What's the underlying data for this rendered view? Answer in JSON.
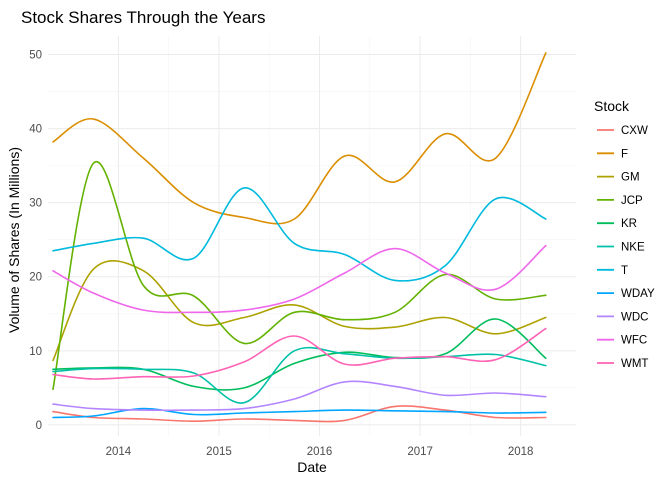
{
  "chart_data": {
    "type": "line",
    "title": "Stock Shares Through the Years",
    "xlabel": "Date",
    "ylabel": "Volume of Shares (In Millions)",
    "xlim": [
      2013.3,
      2018.55
    ],
    "ylim": [
      -1.5,
      52.5
    ],
    "x_ticks": [
      2014,
      2015,
      2016,
      2017,
      2018
    ],
    "x_tick_labels": [
      "2014",
      "2015",
      "2016",
      "2017",
      "2018"
    ],
    "y_ticks": [
      0,
      10,
      20,
      30,
      40,
      50
    ],
    "y_tick_labels": [
      "0",
      "10",
      "20",
      "30",
      "40",
      "50"
    ],
    "grid": true,
    "legend": {
      "title": "Stock",
      "position": "right"
    },
    "series": [
      {
        "name": "CXW",
        "color": "#F8766D",
        "points": [
          [
            2013.35,
            1.8
          ],
          [
            2013.75,
            1.0
          ],
          [
            2014.25,
            0.8
          ],
          [
            2014.75,
            0.5
          ],
          [
            2015.25,
            0.8
          ],
          [
            2015.75,
            0.6
          ],
          [
            2016.25,
            0.6
          ],
          [
            2016.75,
            2.5
          ],
          [
            2017.25,
            2.0
          ],
          [
            2017.75,
            1.0
          ],
          [
            2018.25,
            1.0
          ]
        ]
      },
      {
        "name": "F",
        "color": "#DB8E00",
        "points": [
          [
            2013.35,
            38.2
          ],
          [
            2013.75,
            41.3
          ],
          [
            2014.25,
            36.0
          ],
          [
            2014.75,
            30.0
          ],
          [
            2015.25,
            28.0
          ],
          [
            2015.75,
            27.8
          ],
          [
            2016.25,
            36.3
          ],
          [
            2016.75,
            32.8
          ],
          [
            2017.25,
            39.3
          ],
          [
            2017.75,
            36.0
          ],
          [
            2018.25,
            50.2
          ]
        ]
      },
      {
        "name": "GM",
        "color": "#AEA200",
        "points": [
          [
            2013.35,
            8.7
          ],
          [
            2013.75,
            21.0
          ],
          [
            2014.25,
            20.8
          ],
          [
            2014.75,
            13.8
          ],
          [
            2015.25,
            14.5
          ],
          [
            2015.75,
            16.2
          ],
          [
            2016.25,
            13.3
          ],
          [
            2016.75,
            13.2
          ],
          [
            2017.25,
            14.5
          ],
          [
            2017.75,
            12.3
          ],
          [
            2018.25,
            14.5
          ]
        ]
      },
      {
        "name": "JCP",
        "color": "#64B200",
        "points": [
          [
            2013.35,
            4.8
          ],
          [
            2013.75,
            35.3
          ],
          [
            2014.25,
            18.8
          ],
          [
            2014.75,
            17.4
          ],
          [
            2015.25,
            11.0
          ],
          [
            2015.75,
            15.2
          ],
          [
            2016.25,
            14.2
          ],
          [
            2016.75,
            15.2
          ],
          [
            2017.25,
            20.3
          ],
          [
            2017.75,
            17.0
          ],
          [
            2018.25,
            17.5
          ]
        ]
      },
      {
        "name": "KR",
        "color": "#00BD5C",
        "points": [
          [
            2013.35,
            7.5
          ],
          [
            2013.75,
            7.7
          ],
          [
            2014.25,
            7.5
          ],
          [
            2014.75,
            5.2
          ],
          [
            2015.25,
            5.0
          ],
          [
            2015.75,
            8.3
          ],
          [
            2016.25,
            9.8
          ],
          [
            2016.75,
            9.1
          ],
          [
            2017.25,
            9.6
          ],
          [
            2017.75,
            14.3
          ],
          [
            2018.25,
            9.0
          ]
        ]
      },
      {
        "name": "NKE",
        "color": "#00C1A7",
        "points": [
          [
            2013.35,
            7.2
          ],
          [
            2013.75,
            7.6
          ],
          [
            2014.25,
            7.5
          ],
          [
            2014.75,
            7.0
          ],
          [
            2015.25,
            3.0
          ],
          [
            2015.75,
            10.0
          ],
          [
            2016.25,
            9.6
          ],
          [
            2016.75,
            9.0
          ],
          [
            2017.25,
            9.2
          ],
          [
            2017.75,
            9.5
          ],
          [
            2018.25,
            8.0
          ]
        ]
      },
      {
        "name": "T",
        "color": "#00BADE",
        "points": [
          [
            2013.35,
            23.5
          ],
          [
            2013.75,
            24.5
          ],
          [
            2014.25,
            25.2
          ],
          [
            2014.75,
            22.5
          ],
          [
            2015.25,
            32.0
          ],
          [
            2015.75,
            24.5
          ],
          [
            2016.25,
            23.0
          ],
          [
            2016.75,
            19.5
          ],
          [
            2017.25,
            21.5
          ],
          [
            2017.75,
            30.5
          ],
          [
            2018.25,
            27.8
          ]
        ]
      },
      {
        "name": "WDAY",
        "color": "#00A6FF",
        "points": [
          [
            2013.35,
            1.0
          ],
          [
            2013.75,
            1.2
          ],
          [
            2014.25,
            2.2
          ],
          [
            2014.75,
            1.4
          ],
          [
            2015.25,
            1.6
          ],
          [
            2015.75,
            1.8
          ],
          [
            2016.25,
            2.0
          ],
          [
            2016.75,
            1.9
          ],
          [
            2017.25,
            1.8
          ],
          [
            2017.75,
            1.6
          ],
          [
            2018.25,
            1.7
          ]
        ]
      },
      {
        "name": "WDC",
        "color": "#B385FF",
        "points": [
          [
            2013.35,
            2.8
          ],
          [
            2013.75,
            2.2
          ],
          [
            2014.25,
            2.0
          ],
          [
            2014.75,
            2.0
          ],
          [
            2015.25,
            2.2
          ],
          [
            2015.75,
            3.5
          ],
          [
            2016.25,
            5.8
          ],
          [
            2016.75,
            5.2
          ],
          [
            2017.25,
            4.0
          ],
          [
            2017.75,
            4.3
          ],
          [
            2018.25,
            3.8
          ]
        ]
      },
      {
        "name": "WFC",
        "color": "#EF67EB",
        "points": [
          [
            2013.35,
            20.8
          ],
          [
            2013.75,
            17.8
          ],
          [
            2014.25,
            15.5
          ],
          [
            2014.75,
            15.2
          ],
          [
            2015.25,
            15.5
          ],
          [
            2015.75,
            17.0
          ],
          [
            2016.25,
            20.5
          ],
          [
            2016.75,
            23.8
          ],
          [
            2017.25,
            20.5
          ],
          [
            2017.75,
            18.3
          ],
          [
            2018.25,
            24.2
          ]
        ]
      },
      {
        "name": "WMT",
        "color": "#FF63B6",
        "points": [
          [
            2013.35,
            6.8
          ],
          [
            2013.75,
            6.2
          ],
          [
            2014.25,
            6.5
          ],
          [
            2014.75,
            6.6
          ],
          [
            2015.25,
            8.5
          ],
          [
            2015.75,
            12.0
          ],
          [
            2016.25,
            8.2
          ],
          [
            2016.75,
            9.0
          ],
          [
            2017.25,
            9.2
          ],
          [
            2017.75,
            8.8
          ],
          [
            2018.25,
            13.0
          ]
        ]
      }
    ]
  }
}
